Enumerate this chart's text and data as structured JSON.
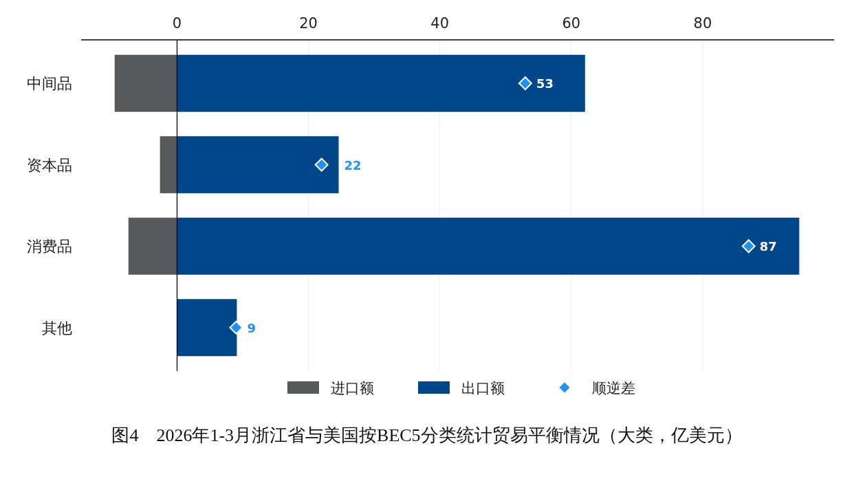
{
  "chart_data": {
    "type": "bar",
    "orientation": "horizontal",
    "stacked": true,
    "title": "图4　2026年1-3月浙江省与美国按BEC5分类统计贸易平衡情况（大类，亿美元）",
    "categories": [
      "中间品",
      "资本品",
      "消费品",
      "其他"
    ],
    "series": [
      {
        "name": "进口额",
        "color": "#58595b",
        "values": [
          -9.5,
          -2.6,
          -7.4,
          0
        ]
      },
      {
        "name": "出口额",
        "color": "#00468b",
        "values": [
          62.1,
          24.6,
          94.7,
          9.1
        ]
      },
      {
        "name": "顺逆差",
        "type": "scatter",
        "marker": "diamond",
        "color": "#1e90ff",
        "values": [
          53,
          22,
          87,
          9
        ],
        "value_labels": [
          "53",
          "22",
          "87",
          "9"
        ]
      }
    ],
    "xlim": [
      -14.6,
      100
    ],
    "xticks": [
      0,
      20,
      40,
      60,
      80
    ],
    "grid": "x",
    "legend": "bottom"
  }
}
